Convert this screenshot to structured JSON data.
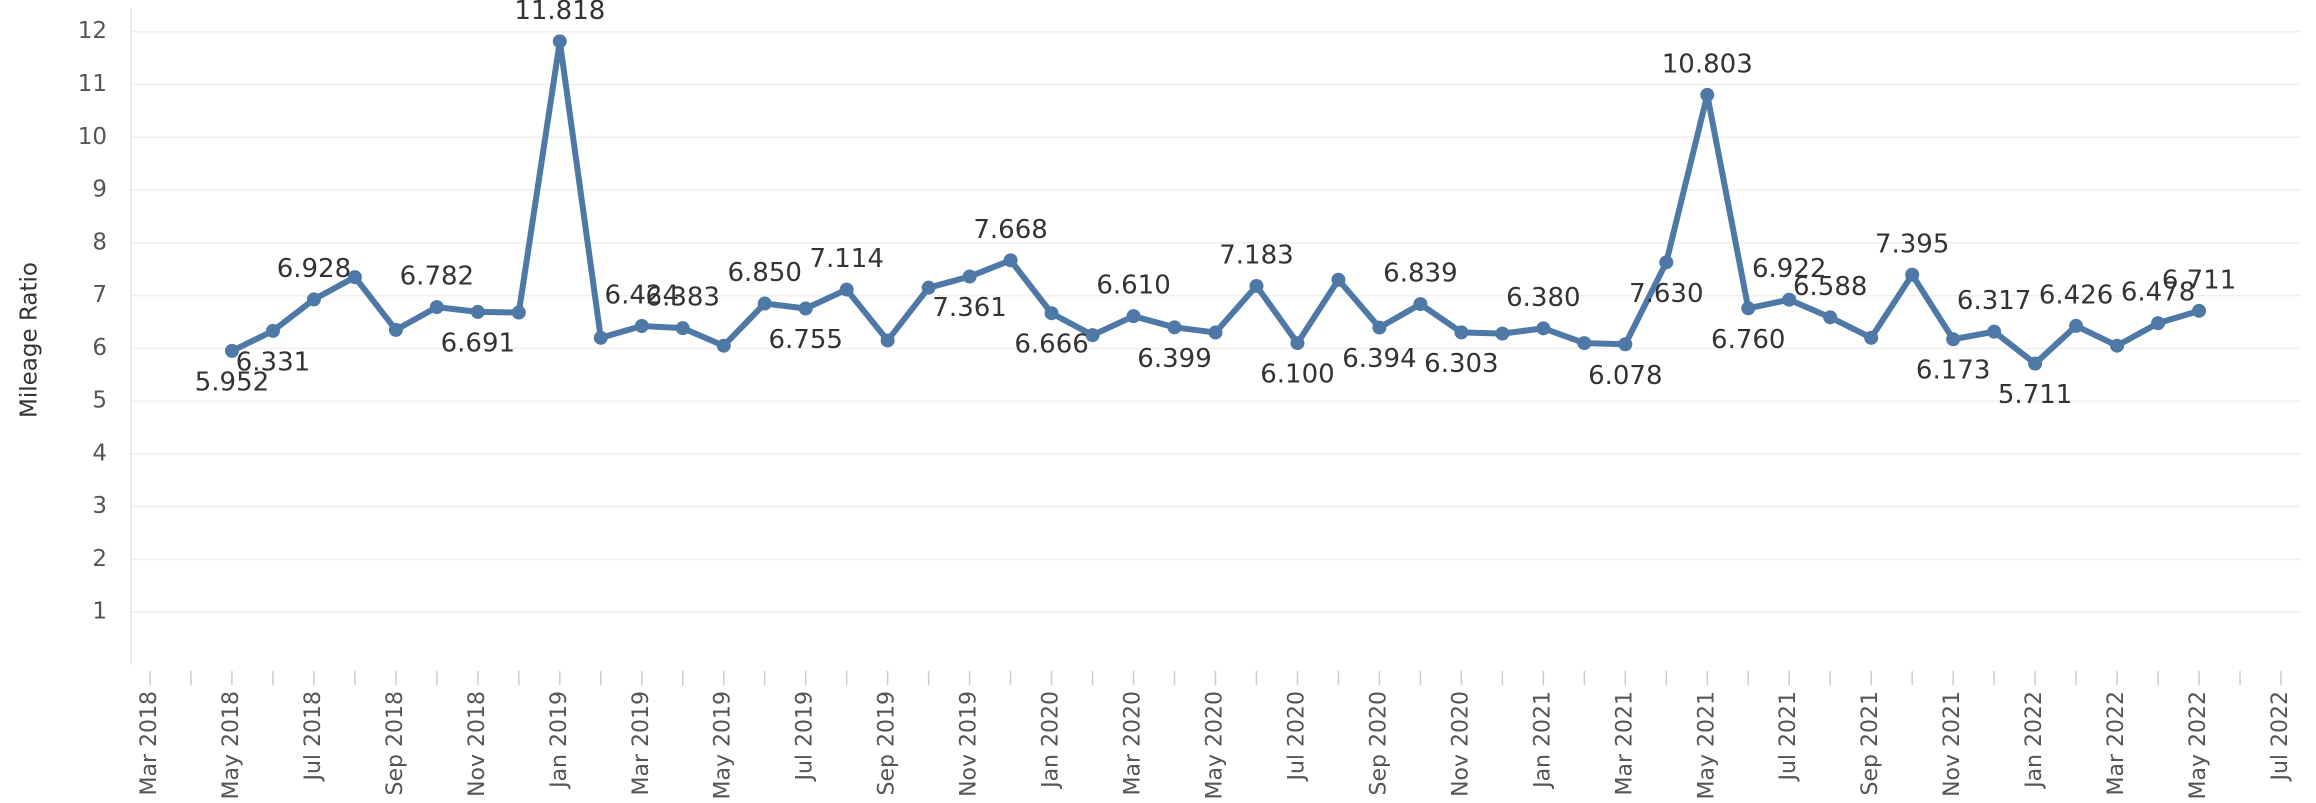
{
  "chart_data": {
    "type": "line",
    "y_label": "Mileage Ratio",
    "categories": [
      "Mar 2018",
      null,
      "May 2018",
      null,
      "Jul 2018",
      null,
      "Sep 2018",
      null,
      "Nov 2018",
      null,
      "Jan 2019",
      null,
      "Mar 2019",
      null,
      "May 2019",
      null,
      "Jul 2019",
      null,
      "Sep 2019",
      null,
      "Nov 2019",
      null,
      "Jan 2020",
      null,
      "Mar 2020",
      null,
      "May 2020",
      null,
      "Jul 2020",
      null,
      "Sep 2020",
      null,
      "Nov 2020",
      null,
      "Jan 2021",
      null,
      "Mar 2021",
      null,
      "May 2021",
      null,
      "Jul 2021",
      null,
      "Sep 2021",
      null,
      "Nov 2021",
      null,
      "Jan 2022",
      null,
      "Mar 2022",
      null,
      "May 2022",
      null,
      "Jul 2022"
    ],
    "series": [
      {
        "name": "Mileage Ratio",
        "color": "#4e78a6",
        "values": [
          null,
          null,
          5.952,
          6.331,
          6.928,
          7.35,
          6.35,
          6.782,
          6.691,
          6.68,
          11.818,
          6.2,
          6.424,
          6.383,
          6.05,
          6.85,
          6.755,
          7.114,
          6.15,
          7.15,
          7.361,
          7.668,
          6.666,
          6.25,
          6.61,
          6.399,
          6.3,
          7.183,
          6.1,
          7.3,
          6.394,
          6.839,
          6.303,
          6.28,
          6.38,
          6.1,
          6.078,
          7.63,
          10.803,
          6.76,
          6.922,
          6.588,
          6.2,
          7.395,
          6.173,
          6.317,
          5.711,
          6.426,
          6.05,
          6.478,
          6.711,
          null,
          null
        ],
        "value_labels": [
          null,
          null,
          "5.952",
          "6.331",
          "6.928",
          null,
          null,
          "6.782",
          "6.691",
          null,
          "11.818",
          null,
          "6.424",
          "6.383",
          null,
          "6.850",
          "6.755",
          "7.114",
          null,
          null,
          "7.361",
          "7.668",
          "6.666",
          null,
          "6.610",
          "6.399",
          null,
          "7.183",
          "6.100",
          null,
          "6.394",
          "6.839",
          "6.303",
          null,
          "6.380",
          null,
          "6.078",
          "7.630",
          "10.803",
          "6.760",
          "6.922",
          "6.588",
          null,
          "7.395",
          "6.173",
          "6.317",
          "5.711",
          "6.426",
          null,
          "6.478",
          "6.711",
          null,
          null
        ]
      }
    ],
    "ylim": [
      0,
      12.45
    ],
    "yticks": [
      1,
      2,
      3,
      4,
      5,
      6,
      7,
      8,
      9,
      10,
      11,
      12
    ],
    "grid": true
  }
}
